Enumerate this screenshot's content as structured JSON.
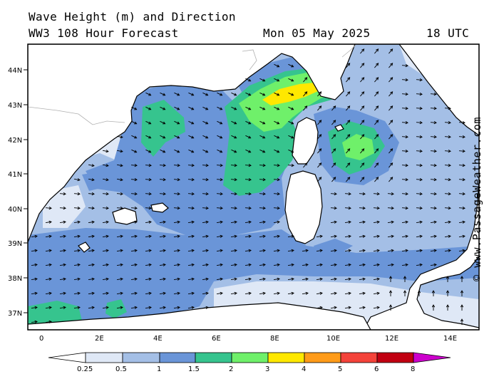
{
  "header": {
    "title_line1": "Wave Height (m) and Direction",
    "title_line2": "WW3 108 Hour Forecast",
    "date": "Mon 05 May 2025",
    "time": "18 UTC"
  },
  "map": {
    "region": "Western Mediterranean",
    "lat_labels": [
      "44N",
      "43N",
      "42N",
      "41N",
      "40N",
      "39N",
      "38N",
      "37N"
    ],
    "lon_labels": [
      "0",
      "2E",
      "4E",
      "6E",
      "8E",
      "10E",
      "12E",
      "14E"
    ],
    "arrow_direction_prevailing": "east to north-east in the south, south-east in the Gulf of Lion and Ligurian Sea",
    "max_wave_height_area": "Ligurian Sea, 3 to 4 m"
  },
  "legend": {
    "labels": [
      "0.25",
      "0.5",
      "1",
      "1.5",
      "2",
      "3",
      "4",
      "5",
      "6",
      "8"
    ],
    "colors": [
      "#dfe8f6",
      "#a4bfe6",
      "#6a95d8",
      "#36c48e",
      "#6ff06a",
      "#ffe800",
      "#ff9b19",
      "#f4433a",
      "#c10011",
      "#cc00cc"
    ]
  },
  "colors": {
    "sea_low": "#dfe8f6",
    "sea_0_5": "#a4bfe6",
    "sea_1": "#6a95d8",
    "sea_1_5": "#36c48e",
    "sea_2": "#6ff06a",
    "sea_3": "#ffe800",
    "land": "#ffffff",
    "coast": "#000000",
    "border": "#b0b0b0"
  },
  "copyright": "© www.PassageWeather.com"
}
